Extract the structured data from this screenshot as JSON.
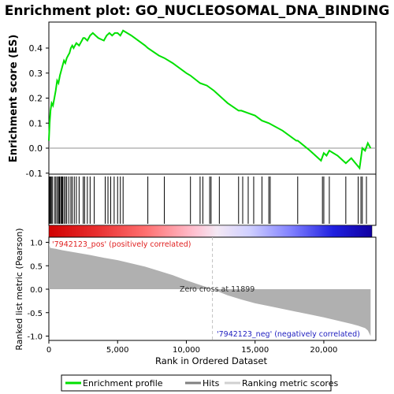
{
  "chart_data": [
    {
      "type": "line",
      "title": "Enrichment plot: GO_NUCLEOSOMAL_DNA_BINDING",
      "ylabel": "Enrichment score (ES)",
      "ylim": [
        -0.1,
        0.5
      ],
      "yticks": [
        -0.1,
        0.0,
        0.1,
        0.2,
        0.3,
        0.4
      ],
      "ytick_labels": [
        "-0.1",
        "0.0",
        "0.1",
        "0.2",
        "0.3",
        "0.4"
      ],
      "xlim": [
        0,
        24500
      ],
      "grid": false,
      "series": [
        {
          "name": "Enrichment profile",
          "color": "#00e000",
          "x": [
            0,
            60,
            120,
            200,
            300,
            400,
            500,
            600,
            700,
            800,
            900,
            1000,
            1100,
            1200,
            1300,
            1400,
            1500,
            1600,
            1700,
            1800,
            2000,
            2200,
            2400,
            2500,
            2600,
            2800,
            3000,
            3200,
            3400,
            3600,
            4000,
            4200,
            4400,
            4600,
            4800,
            5000,
            5200,
            5400,
            6000,
            7000,
            7200,
            8000,
            8400,
            9000,
            10000,
            10300,
            11000,
            11500,
            12000,
            13000,
            13800,
            14000,
            14500,
            15000,
            15500,
            16000,
            17000,
            18000,
            18100,
            19000,
            19800,
            20000,
            20200,
            20400,
            21000,
            21600,
            22000,
            22600,
            22800,
            23000,
            23200,
            23400
          ],
          "y": [
            0.03,
            0.1,
            0.15,
            0.18,
            0.17,
            0.2,
            0.23,
            0.27,
            0.26,
            0.29,
            0.31,
            0.33,
            0.35,
            0.34,
            0.36,
            0.37,
            0.38,
            0.4,
            0.41,
            0.4,
            0.42,
            0.41,
            0.43,
            0.44,
            0.44,
            0.43,
            0.45,
            0.46,
            0.45,
            0.44,
            0.43,
            0.45,
            0.46,
            0.45,
            0.46,
            0.46,
            0.45,
            0.47,
            0.45,
            0.41,
            0.4,
            0.37,
            0.36,
            0.34,
            0.3,
            0.29,
            0.26,
            0.25,
            0.23,
            0.18,
            0.15,
            0.15,
            0.14,
            0.13,
            0.11,
            0.1,
            0.07,
            0.03,
            0.03,
            -0.01,
            -0.05,
            -0.02,
            -0.03,
            -0.01,
            -0.03,
            -0.06,
            -0.04,
            -0.08,
            0.0,
            -0.01,
            0.02,
            0.0
          ]
        }
      ]
    },
    {
      "type": "scatter",
      "series": [
        {
          "name": "Hits",
          "x": [
            60,
            120,
            180,
            250,
            400,
            500,
            600,
            700,
            750,
            800,
            900,
            950,
            1000,
            1100,
            1200,
            1300,
            1450,
            1600,
            1700,
            1850,
            2000,
            2200,
            2500,
            2600,
            2800,
            3000,
            3300,
            4100,
            4300,
            4500,
            4750,
            5000,
            5200,
            5400,
            7200,
            8400,
            10300,
            11000,
            11200,
            11700,
            11800,
            12400,
            13800,
            14100,
            14500,
            14900,
            15500,
            16000,
            16100,
            18100,
            19900,
            20000,
            20400,
            21600,
            22500,
            22700,
            22800,
            23100
          ]
        }
      ]
    },
    {
      "type": "area",
      "xlabel": "Rank in Ordered Dataset",
      "ylabel": "Ranked list metric (Pearson)",
      "ylim": [
        -1.0,
        1.0
      ],
      "yticks": [
        -1.0,
        -0.5,
        0.0,
        0.5,
        1.0
      ],
      "ytick_labels": [
        "-1.0",
        "-0.5",
        "0.0",
        "0.5",
        "1.0"
      ],
      "xticks": [
        0,
        5000,
        10000,
        15000,
        20000
      ],
      "xtick_labels": [
        "0",
        "5,000",
        "10,000",
        "15,000",
        "20,000"
      ],
      "xlim": [
        0,
        24500
      ],
      "series": [
        {
          "name": "Ranking metric scores",
          "color": "#b0b0b0",
          "x": [
            0,
            100,
            500,
            1000,
            2000,
            3000,
            4000,
            5000,
            6000,
            7000,
            8000,
            9000,
            10000,
            11000,
            11899,
            13000,
            14000,
            15000,
            16000,
            17000,
            18000,
            19000,
            20000,
            21000,
            22000,
            22500,
            23000,
            23200,
            23400
          ],
          "y": [
            0.98,
            0.88,
            0.86,
            0.83,
            0.78,
            0.73,
            0.67,
            0.62,
            0.55,
            0.48,
            0.39,
            0.3,
            0.19,
            0.09,
            0.0,
            -0.13,
            -0.22,
            -0.3,
            -0.36,
            -0.42,
            -0.48,
            -0.54,
            -0.6,
            -0.67,
            -0.74,
            -0.78,
            -0.83,
            -0.88,
            -1.0
          ]
        }
      ],
      "annotations": {
        "pos_label": "'7942123_pos' (positively correlated)",
        "neg_label": "'7942123_neg' (negatively correlated)",
        "zero_cross": "Zero cross at 11899",
        "zero_cross_x": 11899
      }
    }
  ],
  "legend": {
    "placement": "bottom",
    "items": [
      {
        "label": "Enrichment profile",
        "color": "#00e000"
      },
      {
        "label": "Hits",
        "color": "#808080"
      },
      {
        "label": "Ranking metric scores",
        "color": "#d0d0d0"
      }
    ]
  },
  "colors": {
    "pos_label": "#e02020",
    "neg_label": "#2020c0",
    "hits": "#000000",
    "zero_line": "#b0b0b0"
  }
}
